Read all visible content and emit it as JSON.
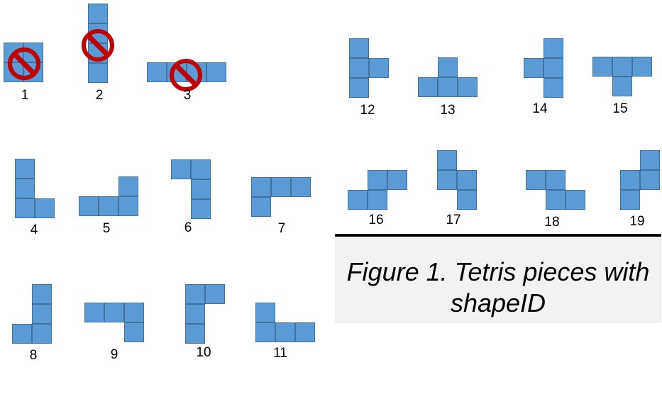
{
  "caption": "Figure 1. Tetris pieces with shapeID",
  "colors": {
    "cell_fill": "#5b9bd5",
    "cell_border": "#41719c",
    "ban": "#c00000"
  },
  "pieces": [
    {
      "id": "1",
      "excluded": true
    },
    {
      "id": "2",
      "excluded": true
    },
    {
      "id": "3",
      "excluded": true
    },
    {
      "id": "4",
      "excluded": false
    },
    {
      "id": "5",
      "excluded": false
    },
    {
      "id": "6",
      "excluded": false
    },
    {
      "id": "7",
      "excluded": false
    },
    {
      "id": "8",
      "excluded": false
    },
    {
      "id": "9",
      "excluded": false
    },
    {
      "id": "10",
      "excluded": false
    },
    {
      "id": "11",
      "excluded": false
    },
    {
      "id": "12",
      "excluded": false
    },
    {
      "id": "13",
      "excluded": false
    },
    {
      "id": "14",
      "excluded": false
    },
    {
      "id": "15",
      "excluded": false
    },
    {
      "id": "16",
      "excluded": false
    },
    {
      "id": "17",
      "excluded": false
    },
    {
      "id": "18",
      "excluded": false
    },
    {
      "id": "19",
      "excluded": false
    }
  ]
}
